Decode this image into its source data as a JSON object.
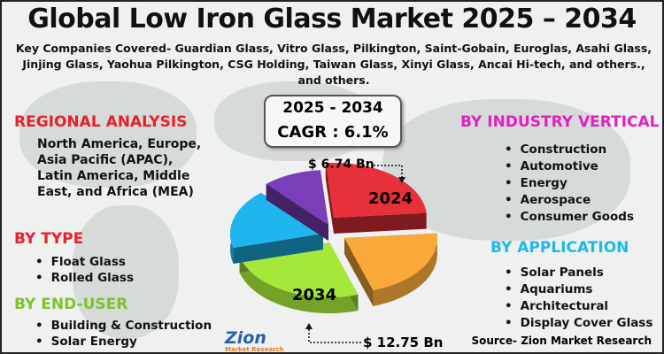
{
  "title": "Global Low Iron Glass Market 2025 – 2034",
  "subtitle": "Key Companies Covered- Guardian Glass, Vitro Glass, Pilkington, Saint-Gobain, Euroglas, Asahi Glass, Jinjing Glass, Yaohua Pilkington, CSG Holding, Taiwan Glass, Xinyi Glass, Ancai Hi-tech, and others., and others.",
  "regional": {
    "heading": "REGIONAL ANALYSIS",
    "text": "North America, Europe, Asia Pacific (APAC), Latin America, Middle East, and Africa (MEA)"
  },
  "type": {
    "heading": "BY TYPE",
    "items": [
      "Float Glass",
      "Rolled Glass"
    ]
  },
  "end_user": {
    "heading": "BY END-USER",
    "items": [
      "Building & Construction",
      "Solar Energy"
    ]
  },
  "industry": {
    "heading": "BY INDUSTRY VERTICAL",
    "items": [
      "Construction",
      "Automotive",
      "Energy",
      "Aerospace",
      "Consumer Goods"
    ]
  },
  "application": {
    "heading": "BY APPLICATION",
    "items": [
      "Solar Panels",
      "Aquariums",
      "Architectural",
      "Display Cover Glass"
    ]
  },
  "cagr": {
    "period": "2025 - 2034",
    "value": "CAGR : 6.1%"
  },
  "pie": {
    "label_2024": "2024",
    "value_2024": "$ 6.74 Bn",
    "label_2034": "2034",
    "value_2034": "$ 12.75 Bn",
    "colors": [
      "#e8303a",
      "#f9a93a",
      "#a6e83a",
      "#1fb5ee",
      "#7a3fb8"
    ]
  },
  "logo": {
    "name": "Zion",
    "tagline": "Market Research"
  },
  "source": "Source- Zion Market Research",
  "colors": {
    "regional": "#e8202a",
    "type": "#e8202a",
    "end_user": "#7dc42a",
    "industry": "#e020c0",
    "application": "#20b8e8"
  }
}
